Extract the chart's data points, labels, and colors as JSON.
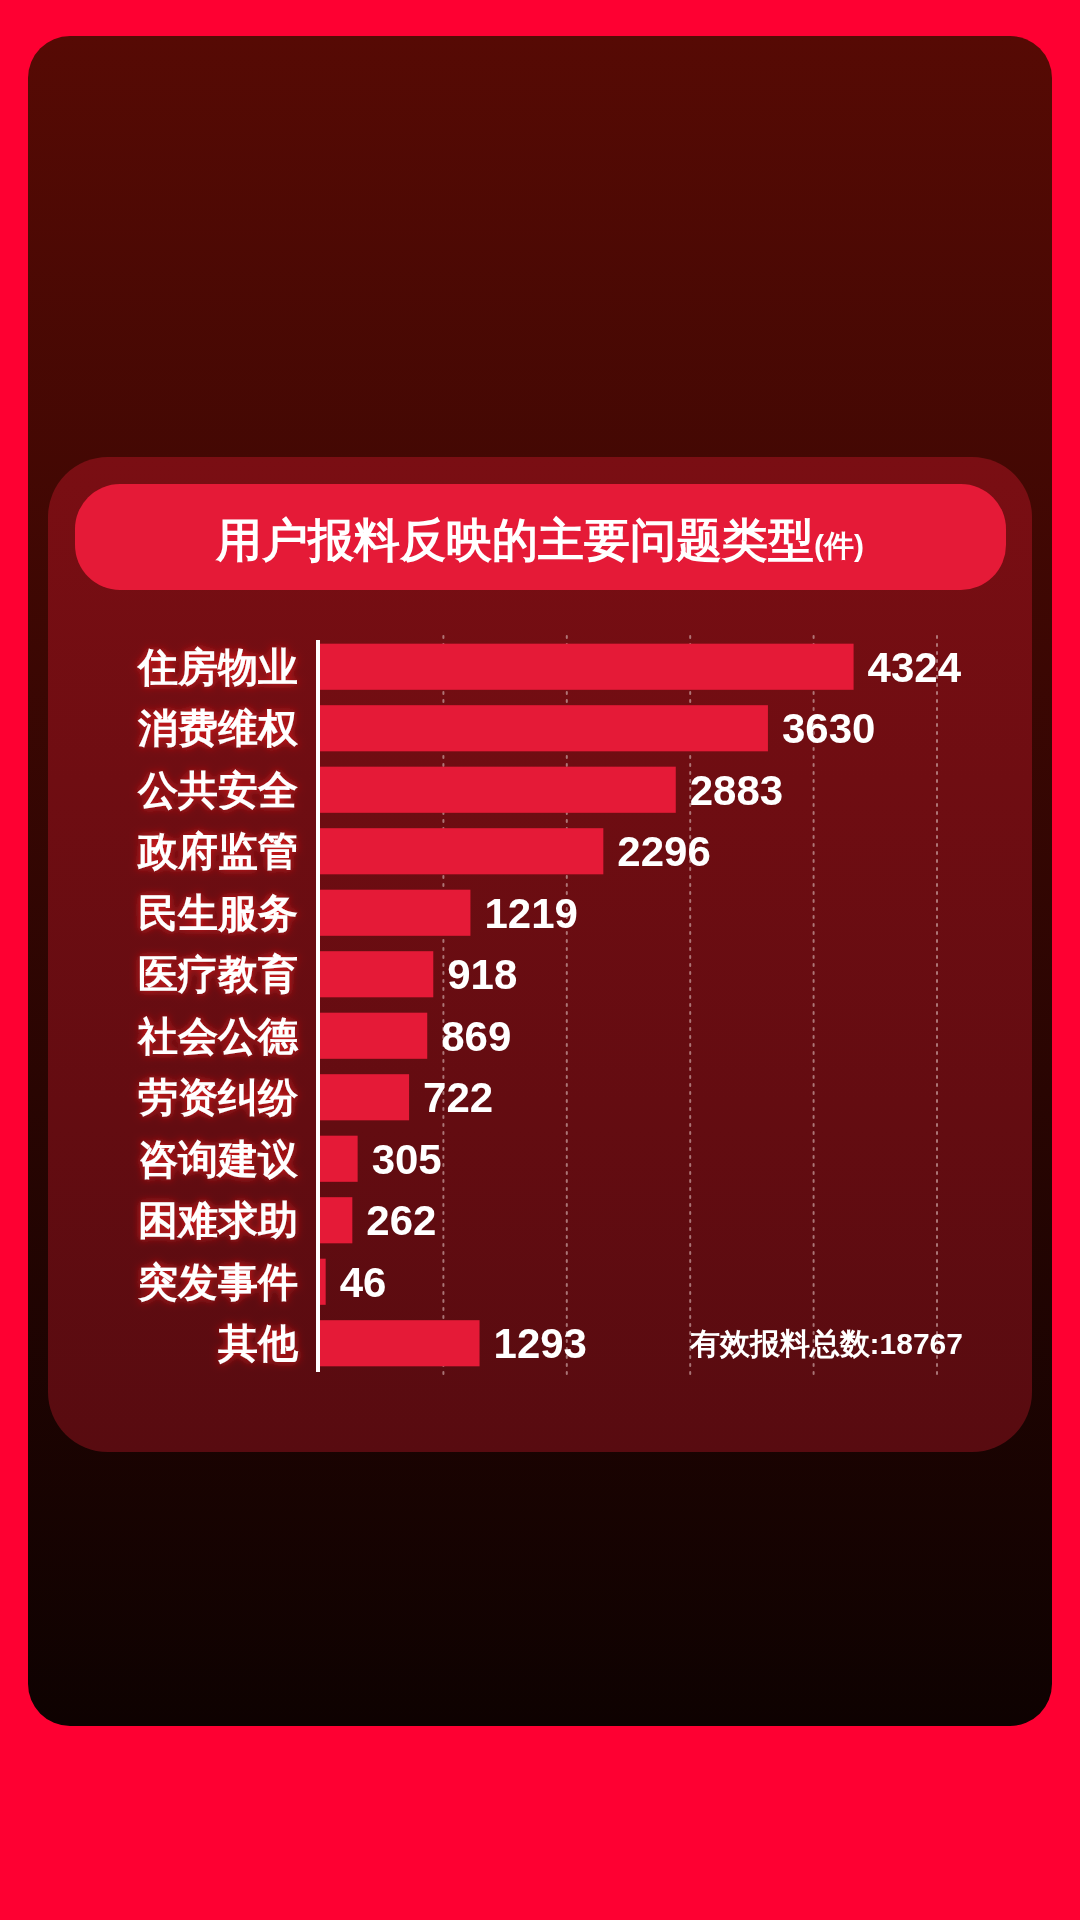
{
  "chart_data": {
    "type": "bar",
    "orientation": "horizontal",
    "title": "用户报料反映的主要问题类型(件)",
    "categories": [
      "住房物业",
      "消费维权",
      "公共安全",
      "政府监管",
      "民生服务",
      "医疗教育",
      "社会公德",
      "劳资纠纷",
      "咨询建议",
      "困难求助",
      "突发事件",
      "其他"
    ],
    "values": [
      4324,
      3630,
      2883,
      2296,
      1219,
      918,
      869,
      722,
      305,
      262,
      46,
      1293
    ],
    "color": "#e51a37",
    "xlim": [
      0,
      5000
    ],
    "xticks": [
      {
        "value": 1000,
        "label": null
      },
      {
        "value": 2000,
        "label": null
      },
      {
        "value": 3000,
        "label": null
      },
      {
        "value": 4000,
        "label": null
      },
      {
        "value": 5000,
        "label": null
      }
    ],
    "grid": "x",
    "tick_labels": "y",
    "data_labels": true,
    "annotations": [
      "有效报料总数:18767"
    ]
  }
}
